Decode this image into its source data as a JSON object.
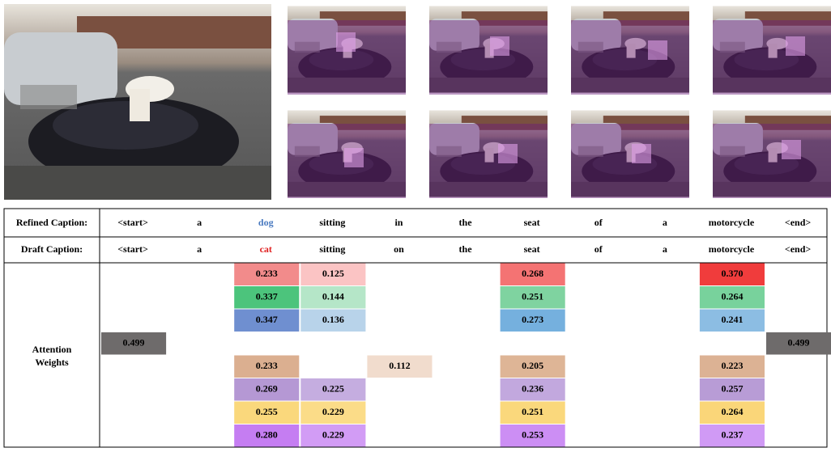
{
  "table": {
    "refined": {
      "label": "Refined Caption:",
      "words": [
        "<start>",
        "a",
        "dog",
        "sitting",
        "in",
        "the",
        "seat",
        "of",
        "a",
        "motorcycle",
        "<end>"
      ],
      "word_colors": {
        "2": "#4a7ac0"
      }
    },
    "draft": {
      "label": "Draft Caption:",
      "words": [
        "<start>",
        "a",
        "cat",
        "sitting",
        "on",
        "the",
        "seat",
        "of",
        "a",
        "motorcycle",
        "<end>"
      ],
      "word_colors": {
        "2": "#e02020"
      }
    },
    "attention": {
      "label": [
        "Attention",
        "Weights"
      ],
      "rows": [
        [
          {
            "col": 2,
            "value": "0.233",
            "color": "#f28b8b"
          },
          {
            "col": 3,
            "value": "0.125",
            "color": "#fbc4c4"
          },
          {
            "col": 6,
            "value": "0.268",
            "color": "#f47373"
          },
          {
            "col": 9,
            "value": "0.370",
            "color": "#f03c3c"
          }
        ],
        [
          {
            "col": 2,
            "value": "0.337",
            "color": "#4cc47c"
          },
          {
            "col": 3,
            "value": "0.144",
            "color": "#b5e6c8"
          },
          {
            "col": 6,
            "value": "0.251",
            "color": "#7fd3a0"
          },
          {
            "col": 9,
            "value": "0.264",
            "color": "#78d29c"
          }
        ],
        [
          {
            "col": 2,
            "value": "0.347",
            "color": "#6f8fd0"
          },
          {
            "col": 3,
            "value": "0.136",
            "color": "#b8d3ea"
          },
          {
            "col": 6,
            "value": "0.273",
            "color": "#75b0de"
          },
          {
            "col": 9,
            "value": "0.241",
            "color": "#8cbde3"
          }
        ],
        [
          {
            "col": 0,
            "value": "0.499",
            "color": "#6e6b6b"
          },
          {
            "col": 10,
            "value": "0.499",
            "color": "#6e6b6b"
          }
        ],
        [
          {
            "col": 2,
            "value": "0.233",
            "color": "#dbaf90"
          },
          {
            "col": 4,
            "value": "0.112",
            "color": "#f1dccd"
          },
          {
            "col": 6,
            "value": "0.205",
            "color": "#deb596"
          },
          {
            "col": 9,
            "value": "0.223",
            "color": "#dcb294"
          }
        ],
        [
          {
            "col": 2,
            "value": "0.269",
            "color": "#b598d4"
          },
          {
            "col": 3,
            "value": "0.225",
            "color": "#c5ade0"
          },
          {
            "col": 6,
            "value": "0.236",
            "color": "#c2a8de"
          },
          {
            "col": 9,
            "value": "0.257",
            "color": "#b89cd6"
          }
        ],
        [
          {
            "col": 2,
            "value": "0.255",
            "color": "#fad87c"
          },
          {
            "col": 3,
            "value": "0.229",
            "color": "#fbdc88"
          },
          {
            "col": 6,
            "value": "0.251",
            "color": "#fad87c"
          },
          {
            "col": 9,
            "value": "0.264",
            "color": "#fad679"
          }
        ],
        [
          {
            "col": 2,
            "value": "0.280",
            "color": "#c57df2"
          },
          {
            "col": 3,
            "value": "0.229",
            "color": "#d29cf5"
          },
          {
            "col": 6,
            "value": "0.253",
            "color": "#cc8ef4"
          },
          {
            "col": 9,
            "value": "0.237",
            "color": "#d09af5"
          }
        ]
      ]
    }
  }
}
